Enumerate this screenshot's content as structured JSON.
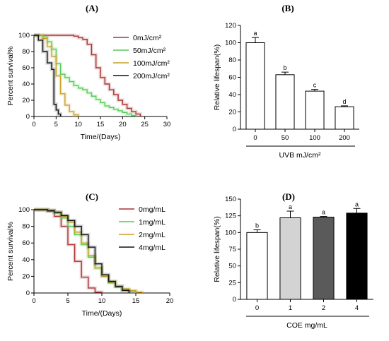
{
  "chart_data": [
    {
      "id": "A",
      "panel_label": "(A)",
      "type": "line",
      "step": true,
      "xlabel": "Time/(Days)",
      "ylabel": "Percent survival%",
      "xlim": [
        0,
        30
      ],
      "ylim": [
        0,
        100
      ],
      "xticks": [
        0,
        5,
        10,
        15,
        20,
        25,
        30
      ],
      "yticks": [
        0,
        20,
        40,
        60,
        80,
        100
      ],
      "legend": "right",
      "series": [
        {
          "name": "0mJ/cm²",
          "color": "#a83232",
          "x": [
            0,
            7,
            9,
            10,
            11,
            12,
            13,
            14,
            15,
            16,
            17,
            18,
            19,
            20,
            21,
            22,
            23,
            24
          ],
          "y": [
            100,
            100,
            99,
            97,
            95,
            89,
            76,
            60,
            48,
            40,
            33,
            27,
            20,
            15,
            10,
            6,
            3,
            0
          ]
        },
        {
          "name": "50mJ/cm²",
          "color": "#55cc55",
          "x": [
            0,
            2,
            3,
            4,
            5,
            6,
            7,
            8,
            9,
            10,
            11,
            12,
            13,
            14,
            15,
            16,
            17,
            18,
            19,
            20,
            21,
            22,
            23
          ],
          "y": [
            100,
            98,
            92,
            83,
            65,
            52,
            48,
            43,
            38,
            35,
            33,
            29,
            25,
            21,
            17,
            13,
            11,
            9,
            7,
            5,
            3,
            1,
            0
          ]
        },
        {
          "name": "100mJ/cm²",
          "color": "#c9a227",
          "x": [
            0,
            2,
            3,
            4,
            5,
            6,
            7,
            8,
            9,
            10
          ],
          "y": [
            100,
            96,
            86,
            74,
            50,
            28,
            14,
            6,
            2,
            0
          ]
        },
        {
          "name": "200mJ/cm²",
          "color": "#111111",
          "x": [
            0,
            1,
            2,
            3,
            4,
            4.5,
            5,
            5.5,
            6
          ],
          "y": [
            100,
            94,
            80,
            66,
            58,
            15,
            8,
            3,
            0
          ]
        }
      ]
    },
    {
      "id": "B",
      "panel_label": "(B)",
      "type": "bar",
      "xlabel": "UVB mJ/cm²",
      "ylabel": "Relative lifespan(%)",
      "ylim": [
        0,
        120
      ],
      "yticks": [
        0,
        20,
        40,
        60,
        80,
        100,
        120
      ],
      "categories": [
        "0",
        "50",
        "100",
        "200"
      ],
      "values": [
        100,
        63,
        44,
        26
      ],
      "errors": [
        6,
        3,
        2,
        1
      ],
      "significance": [
        "a",
        "b",
        "c",
        "d"
      ],
      "fill_colors": [
        "#ffffff",
        "#ffffff",
        "#ffffff",
        "#ffffff"
      ]
    },
    {
      "id": "C",
      "panel_label": "(C)",
      "type": "line",
      "step": true,
      "xlabel": "Time/(Days)",
      "ylabel": "Percent survival%",
      "xlim": [
        0,
        20
      ],
      "ylim": [
        0,
        100
      ],
      "xticks": [
        0,
        5,
        10,
        15,
        20
      ],
      "yticks": [
        0,
        20,
        40,
        60,
        80,
        100
      ],
      "legend": "right",
      "series": [
        {
          "name": "0mg/mL",
          "color": "#a83232",
          "x": [
            0,
            2,
            3,
            4,
            5,
            6,
            7,
            8,
            9,
            10
          ],
          "y": [
            100,
            98,
            92,
            80,
            58,
            38,
            19,
            6,
            1,
            0
          ]
        },
        {
          "name": "1mg/mL",
          "color": "#55cc55",
          "x": [
            0,
            2,
            3,
            4,
            5,
            6,
            7,
            8,
            9,
            10,
            11,
            12,
            13,
            14,
            15
          ],
          "y": [
            100,
            99,
            96,
            90,
            80,
            70,
            58,
            43,
            30,
            20,
            12,
            7,
            4,
            2,
            0
          ]
        },
        {
          "name": "2mg/mL",
          "color": "#c9a227",
          "x": [
            0,
            2,
            3,
            4,
            5,
            6,
            7,
            8,
            9,
            10,
            11,
            12,
            13,
            14,
            15,
            16
          ],
          "y": [
            100,
            99,
            97,
            92,
            85,
            73,
            60,
            45,
            30,
            20,
            13,
            8,
            5,
            3,
            1,
            0
          ]
        },
        {
          "name": "4mg/mL",
          "color": "#111111",
          "x": [
            0,
            2,
            3,
            4,
            5,
            6,
            7,
            8,
            9,
            10,
            11,
            12,
            13,
            14
          ],
          "y": [
            100,
            99,
            97,
            93,
            87,
            80,
            70,
            55,
            35,
            22,
            14,
            8,
            3,
            0
          ]
        }
      ]
    },
    {
      "id": "D",
      "panel_label": "(D)",
      "type": "bar",
      "xlabel": "COE   mg/mL",
      "ylabel": "Relative lifespan(%)",
      "ylim": [
        0,
        150
      ],
      "yticks": [
        0,
        25,
        50,
        75,
        100,
        125,
        150
      ],
      "categories": [
        "0",
        "1",
        "2",
        "4"
      ],
      "values": [
        100,
        122,
        123,
        129
      ],
      "errors": [
        4,
        10,
        1,
        7
      ],
      "significance": [
        "b",
        "a",
        "a",
        "a"
      ],
      "fill_colors": [
        "#ffffff",
        "#d3d3d3",
        "#5a5a5a",
        "#000000"
      ]
    }
  ]
}
